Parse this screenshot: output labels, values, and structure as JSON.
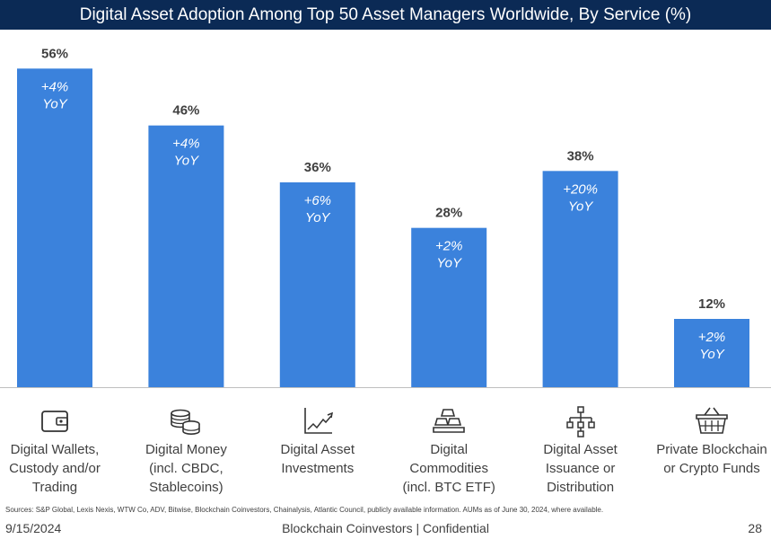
{
  "title": "Digital Asset Adoption Among Top 50 Asset Managers Worldwide, By Service (%)",
  "colors": {
    "bar": "#3b82dc",
    "title_bg": "#0b2a55",
    "text": "#404040"
  },
  "chart_data": {
    "type": "bar",
    "title": "Digital Asset Adoption Among Top 50 Asset Managers Worldwide, By Service (%)",
    "categories": [
      "Digital Wallets, Custody and/or Trading",
      "Digital Money (incl. CBDC, Stablecoins)",
      "Digital Asset Investments",
      "Digital Commodities (incl. BTC ETF)",
      "Digital Asset Issuance or Distribution",
      "Private Blockchain or Crypto Funds"
    ],
    "values": [
      56,
      46,
      36,
      28,
      38,
      12
    ],
    "value_labels": [
      "56%",
      "46%",
      "36%",
      "28%",
      "38%",
      "12%"
    ],
    "yoy_labels": [
      [
        "+4%",
        "YoY"
      ],
      [
        "+4%",
        "YoY"
      ],
      [
        "+6%",
        "YoY"
      ],
      [
        "+2%",
        "YoY"
      ],
      [
        "+20%",
        "YoY"
      ],
      [
        "+2%",
        "YoY"
      ]
    ],
    "ylim": [
      0,
      60
    ],
    "grid": false,
    "legend": "none"
  },
  "categories_display": [
    {
      "icon": "wallet-icon",
      "lines": [
        "Digital Wallets,",
        "Custody and/or",
        "Trading"
      ]
    },
    {
      "icon": "coins-icon",
      "lines": [
        "Digital Money",
        "(incl. CBDC,",
        "Stablecoins)"
      ]
    },
    {
      "icon": "trend-chart-icon",
      "lines": [
        "Digital Asset",
        "Investments"
      ]
    },
    {
      "icon": "gold-bars-icon",
      "lines": [
        "Digital",
        "Commodities",
        "(incl. BTC ETF)"
      ]
    },
    {
      "icon": "hierarchy-icon",
      "lines": [
        "Digital Asset",
        "Issuance or",
        "Distribution"
      ]
    },
    {
      "icon": "basket-icon",
      "lines": [
        "Private Blockchain",
        "or Crypto Funds"
      ]
    }
  ],
  "sources": "Sources: S&P Global, Lexis Nexis, WTW Co, ADV, Bitwise, Blockchain Coinvestors, Chainalysis, Atlantic Council, publicly available information. AUMs as of June 30, 2024, where available.",
  "footer": {
    "date": "9/15/2024",
    "center": "Blockchain Coinvestors | Confidential",
    "page": "28"
  }
}
